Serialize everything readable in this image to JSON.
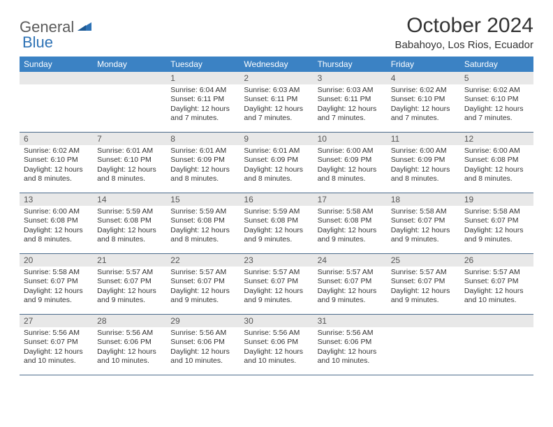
{
  "brand": {
    "word1": "General",
    "word2": "Blue",
    "text_color": "#5a5a5a",
    "accent_color": "#2d72b5"
  },
  "title": "October 2024",
  "location": "Babahoyo, Los Rios, Ecuador",
  "colors": {
    "header_bg": "#3b82c4",
    "daynum_bg": "#e8e8e8",
    "row_border": "#4a6a8a",
    "text": "#333333"
  },
  "fonts": {
    "title_size": 30,
    "location_size": 15,
    "dow_size": 12,
    "daynum_size": 12,
    "body_size": 10.5
  },
  "days_of_week": [
    "Sunday",
    "Monday",
    "Tuesday",
    "Wednesday",
    "Thursday",
    "Friday",
    "Saturday"
  ],
  "weeks": [
    [
      {
        "num": "",
        "lines": []
      },
      {
        "num": "",
        "lines": []
      },
      {
        "num": "1",
        "lines": [
          "Sunrise: 6:04 AM",
          "Sunset: 6:11 PM",
          "Daylight: 12 hours and 7 minutes."
        ]
      },
      {
        "num": "2",
        "lines": [
          "Sunrise: 6:03 AM",
          "Sunset: 6:11 PM",
          "Daylight: 12 hours and 7 minutes."
        ]
      },
      {
        "num": "3",
        "lines": [
          "Sunrise: 6:03 AM",
          "Sunset: 6:11 PM",
          "Daylight: 12 hours and 7 minutes."
        ]
      },
      {
        "num": "4",
        "lines": [
          "Sunrise: 6:02 AM",
          "Sunset: 6:10 PM",
          "Daylight: 12 hours and 7 minutes."
        ]
      },
      {
        "num": "5",
        "lines": [
          "Sunrise: 6:02 AM",
          "Sunset: 6:10 PM",
          "Daylight: 12 hours and 7 minutes."
        ]
      }
    ],
    [
      {
        "num": "6",
        "lines": [
          "Sunrise: 6:02 AM",
          "Sunset: 6:10 PM",
          "Daylight: 12 hours and 8 minutes."
        ]
      },
      {
        "num": "7",
        "lines": [
          "Sunrise: 6:01 AM",
          "Sunset: 6:10 PM",
          "Daylight: 12 hours and 8 minutes."
        ]
      },
      {
        "num": "8",
        "lines": [
          "Sunrise: 6:01 AM",
          "Sunset: 6:09 PM",
          "Daylight: 12 hours and 8 minutes."
        ]
      },
      {
        "num": "9",
        "lines": [
          "Sunrise: 6:01 AM",
          "Sunset: 6:09 PM",
          "Daylight: 12 hours and 8 minutes."
        ]
      },
      {
        "num": "10",
        "lines": [
          "Sunrise: 6:00 AM",
          "Sunset: 6:09 PM",
          "Daylight: 12 hours and 8 minutes."
        ]
      },
      {
        "num": "11",
        "lines": [
          "Sunrise: 6:00 AM",
          "Sunset: 6:09 PM",
          "Daylight: 12 hours and 8 minutes."
        ]
      },
      {
        "num": "12",
        "lines": [
          "Sunrise: 6:00 AM",
          "Sunset: 6:08 PM",
          "Daylight: 12 hours and 8 minutes."
        ]
      }
    ],
    [
      {
        "num": "13",
        "lines": [
          "Sunrise: 6:00 AM",
          "Sunset: 6:08 PM",
          "Daylight: 12 hours and 8 minutes."
        ]
      },
      {
        "num": "14",
        "lines": [
          "Sunrise: 5:59 AM",
          "Sunset: 6:08 PM",
          "Daylight: 12 hours and 8 minutes."
        ]
      },
      {
        "num": "15",
        "lines": [
          "Sunrise: 5:59 AM",
          "Sunset: 6:08 PM",
          "Daylight: 12 hours and 8 minutes."
        ]
      },
      {
        "num": "16",
        "lines": [
          "Sunrise: 5:59 AM",
          "Sunset: 6:08 PM",
          "Daylight: 12 hours and 9 minutes."
        ]
      },
      {
        "num": "17",
        "lines": [
          "Sunrise: 5:58 AM",
          "Sunset: 6:08 PM",
          "Daylight: 12 hours and 9 minutes."
        ]
      },
      {
        "num": "18",
        "lines": [
          "Sunrise: 5:58 AM",
          "Sunset: 6:07 PM",
          "Daylight: 12 hours and 9 minutes."
        ]
      },
      {
        "num": "19",
        "lines": [
          "Sunrise: 5:58 AM",
          "Sunset: 6:07 PM",
          "Daylight: 12 hours and 9 minutes."
        ]
      }
    ],
    [
      {
        "num": "20",
        "lines": [
          "Sunrise: 5:58 AM",
          "Sunset: 6:07 PM",
          "Daylight: 12 hours and 9 minutes."
        ]
      },
      {
        "num": "21",
        "lines": [
          "Sunrise: 5:57 AM",
          "Sunset: 6:07 PM",
          "Daylight: 12 hours and 9 minutes."
        ]
      },
      {
        "num": "22",
        "lines": [
          "Sunrise: 5:57 AM",
          "Sunset: 6:07 PM",
          "Daylight: 12 hours and 9 minutes."
        ]
      },
      {
        "num": "23",
        "lines": [
          "Sunrise: 5:57 AM",
          "Sunset: 6:07 PM",
          "Daylight: 12 hours and 9 minutes."
        ]
      },
      {
        "num": "24",
        "lines": [
          "Sunrise: 5:57 AM",
          "Sunset: 6:07 PM",
          "Daylight: 12 hours and 9 minutes."
        ]
      },
      {
        "num": "25",
        "lines": [
          "Sunrise: 5:57 AM",
          "Sunset: 6:07 PM",
          "Daylight: 12 hours and 9 minutes."
        ]
      },
      {
        "num": "26",
        "lines": [
          "Sunrise: 5:57 AM",
          "Sunset: 6:07 PM",
          "Daylight: 12 hours and 10 minutes."
        ]
      }
    ],
    [
      {
        "num": "27",
        "lines": [
          "Sunrise: 5:56 AM",
          "Sunset: 6:07 PM",
          "Daylight: 12 hours and 10 minutes."
        ]
      },
      {
        "num": "28",
        "lines": [
          "Sunrise: 5:56 AM",
          "Sunset: 6:06 PM",
          "Daylight: 12 hours and 10 minutes."
        ]
      },
      {
        "num": "29",
        "lines": [
          "Sunrise: 5:56 AM",
          "Sunset: 6:06 PM",
          "Daylight: 12 hours and 10 minutes."
        ]
      },
      {
        "num": "30",
        "lines": [
          "Sunrise: 5:56 AM",
          "Sunset: 6:06 PM",
          "Daylight: 12 hours and 10 minutes."
        ]
      },
      {
        "num": "31",
        "lines": [
          "Sunrise: 5:56 AM",
          "Sunset: 6:06 PM",
          "Daylight: 12 hours and 10 minutes."
        ]
      },
      {
        "num": "",
        "lines": []
      },
      {
        "num": "",
        "lines": []
      }
    ]
  ]
}
